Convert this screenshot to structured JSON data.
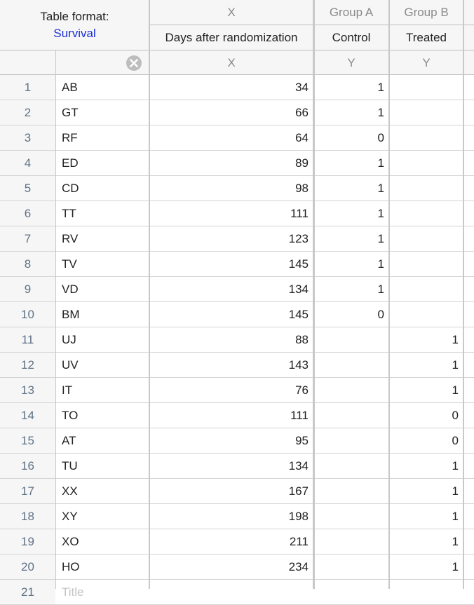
{
  "header": {
    "format_label": "Table format:",
    "format_value": "Survival",
    "columns": [
      {
        "group": "X",
        "title": "Days after randomization",
        "kind": "X"
      },
      {
        "group": "Group A",
        "title": "Control",
        "kind": "Y"
      },
      {
        "group": "Group B",
        "title": "Treated",
        "kind": "Y"
      }
    ]
  },
  "table": {
    "rows": [
      [
        1,
        "AB",
        34,
        1,
        null
      ],
      [
        2,
        "GT",
        66,
        1,
        null
      ],
      [
        3,
        "RF",
        64,
        0,
        null
      ],
      [
        4,
        "ED",
        89,
        1,
        null
      ],
      [
        5,
        "CD",
        98,
        1,
        null
      ],
      [
        6,
        "TT",
        111,
        1,
        null
      ],
      [
        7,
        "RV",
        123,
        1,
        null
      ],
      [
        8,
        "TV",
        145,
        1,
        null
      ],
      [
        9,
        "VD",
        134,
        1,
        null
      ],
      [
        10,
        "BM",
        145,
        0,
        null
      ],
      [
        11,
        "UJ",
        88,
        null,
        1
      ],
      [
        12,
        "UV",
        143,
        null,
        1
      ],
      [
        13,
        "IT",
        76,
        null,
        1
      ],
      [
        14,
        "TO",
        111,
        null,
        0
      ],
      [
        15,
        "AT",
        95,
        null,
        0
      ],
      [
        16,
        "TU",
        134,
        null,
        1
      ],
      [
        17,
        "XX",
        167,
        null,
        1
      ],
      [
        18,
        "XY",
        198,
        null,
        1
      ],
      [
        19,
        "XO",
        211,
        null,
        1
      ],
      [
        20,
        "HO",
        234,
        null,
        1
      ],
      [
        21,
        "Title",
        null,
        null,
        null
      ]
    ]
  }
}
